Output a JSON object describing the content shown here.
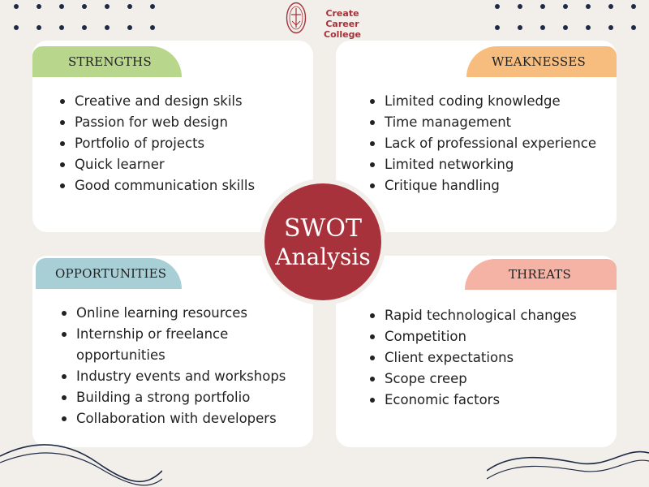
{
  "brand": {
    "name": "Create Career College",
    "accent": "#a8323b"
  },
  "center": {
    "line1": "SWOT",
    "line2": "Analysis"
  },
  "quadrants": {
    "strengths": {
      "title": "STRENGTHS",
      "color": "#b8d68c",
      "items": [
        "Creative and design skils",
        "Passion for web design",
        "Portfolio of projects",
        "Quick learner",
        "Good communication skills"
      ]
    },
    "weaknesses": {
      "title": "WEAKNESSES",
      "color": "#f7bd7e",
      "items": [
        "Limited coding knowledge",
        "Time management",
        "Lack of professional experience",
        "Limited networking",
        "Critique handling"
      ]
    },
    "opportunities": {
      "title": "OPPORTUNITIES",
      "color": "#a8cfd6",
      "items": [
        "Online learning resources",
        "Internship or freelance opportunities",
        "Industry events and workshops",
        "Building a strong portfolio",
        "Collaboration with developers"
      ]
    },
    "threats": {
      "title": "THREATS",
      "color": "#f4b3a5",
      "items": [
        "Rapid technological changes",
        "Competition",
        "Client expectations",
        "Scope creep",
        "Economic factors"
      ]
    }
  },
  "icons": {
    "logo": "college-seal-icon"
  }
}
